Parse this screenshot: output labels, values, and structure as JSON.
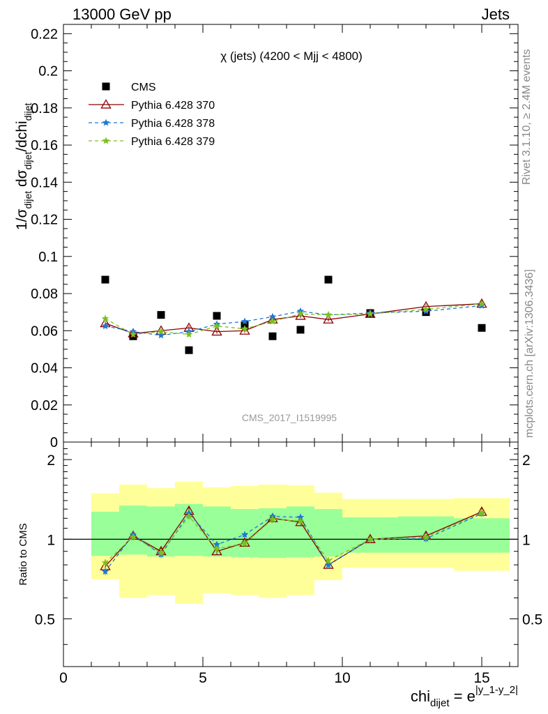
{
  "header": {
    "left": "13000 GeV pp",
    "right": "Jets"
  },
  "side": {
    "rivet": "Rivet 3.1.10, ≥ 2.4M events",
    "mcplots": "mcplots.cern.ch [arXiv:1306.3436]"
  },
  "chart_data": [
    {
      "type": "scatter",
      "title": "χ (jets) (4200 < Mjj < 4800)",
      "watermark": "CMS_2017_I1519995",
      "ylabel": "1/σ_dijet dσ_dijet/dchi_dijet",
      "ylim": [
        0,
        0.225
      ],
      "xlim": [
        0,
        16.3
      ],
      "yticks": [
        "0",
        "0.02",
        "0.04",
        "0.06",
        "0.08",
        "0.1",
        "0.12",
        "0.14",
        "0.16",
        "0.18",
        "0.2",
        "0.22"
      ],
      "x": [
        1.5,
        2.5,
        3.5,
        4.5,
        5.5,
        6.5,
        7.5,
        8.5,
        9.5,
        11,
        13,
        15
      ],
      "series": [
        {
          "name": "CMS",
          "color": "#000000",
          "marker": "square",
          "values": [
            0.0875,
            0.057,
            0.0685,
            0.0495,
            0.068,
            0.063,
            0.057,
            0.0605,
            0.0875,
            0.0695,
            0.07,
            0.0615
          ]
        },
        {
          "name": "Pythia 6.428 370",
          "color": "#8b0000",
          "marker": "open-triangle",
          "values": [
            0.064,
            0.0585,
            0.06,
            0.0615,
            0.0595,
            0.06,
            0.066,
            0.068,
            0.066,
            0.069,
            0.073,
            0.0745
          ]
        },
        {
          "name": "Pythia 6.428 378",
          "color": "#1e78d2",
          "marker": "star",
          "values": [
            0.0625,
            0.0595,
            0.0575,
            0.0595,
            0.0635,
            0.065,
            0.0675,
            0.0705,
            0.0685,
            0.0695,
            0.0705,
            0.0735
          ]
        },
        {
          "name": "Pythia 6.428 379",
          "color": "#7ac11d",
          "marker": "star",
          "values": [
            0.0665,
            0.058,
            0.0595,
            0.058,
            0.0625,
            0.061,
            0.065,
            0.069,
            0.0685,
            0.069,
            0.0715,
            0.0745
          ]
        }
      ],
      "legend_position": "top-left"
    },
    {
      "type": "line",
      "ylabel": "Ratio to CMS",
      "xlabel": "chi_dijet = e^|y_1-y_2|",
      "ylim": [
        0.33,
        2.33
      ],
      "xlim": [
        0,
        16.3
      ],
      "xticks": [
        "0",
        "5",
        "10",
        "15"
      ],
      "yticks": [
        "0.5",
        "1",
        "2"
      ],
      "bands": {
        "edges": [
          1,
          2,
          3,
          4,
          5,
          6,
          7,
          8,
          9,
          10,
          12,
          14,
          16
        ],
        "inner_lo": [
          0.865,
          0.875,
          0.86,
          0.865,
          0.86,
          0.855,
          0.85,
          0.855,
          0.86,
          0.89,
          0.89,
          0.89
        ],
        "inner_hi": [
          1.27,
          1.34,
          1.33,
          1.36,
          1.33,
          1.3,
          1.31,
          1.33,
          1.3,
          1.21,
          1.22,
          1.2
        ],
        "outer_lo": [
          0.705,
          0.6,
          0.615,
          0.57,
          0.625,
          0.615,
          0.6,
          0.615,
          0.7,
          0.78,
          0.78,
          0.76
        ],
        "outer_hi": [
          1.49,
          1.61,
          1.56,
          1.65,
          1.57,
          1.59,
          1.61,
          1.6,
          1.5,
          1.42,
          1.42,
          1.43
        ],
        "inner_color": "#99ff99",
        "outer_color": "#ffff99"
      },
      "series": [
        {
          "name": "Pythia 6.428 370",
          "color": "#8b0000",
          "marker": "open-triangle",
          "values": [
            0.79,
            1.03,
            0.9,
            1.28,
            0.9,
            0.97,
            1.2,
            1.16,
            0.8,
            1.0,
            1.03,
            1.27
          ]
        },
        {
          "name": "Pythia 6.428 378",
          "color": "#1e78d2",
          "marker": "star",
          "values": [
            0.755,
            1.04,
            0.875,
            1.25,
            0.955,
            1.04,
            1.22,
            1.21,
            0.8,
            1.0,
            1.005,
            1.25
          ]
        },
        {
          "name": "Pythia 6.428 379",
          "color": "#7ac11d",
          "marker": "star",
          "values": [
            0.815,
            1.02,
            0.89,
            1.22,
            0.92,
            0.965,
            1.19,
            1.17,
            0.83,
            1.0,
            1.02,
            1.26
          ]
        }
      ],
      "reference_line": 1
    }
  ]
}
